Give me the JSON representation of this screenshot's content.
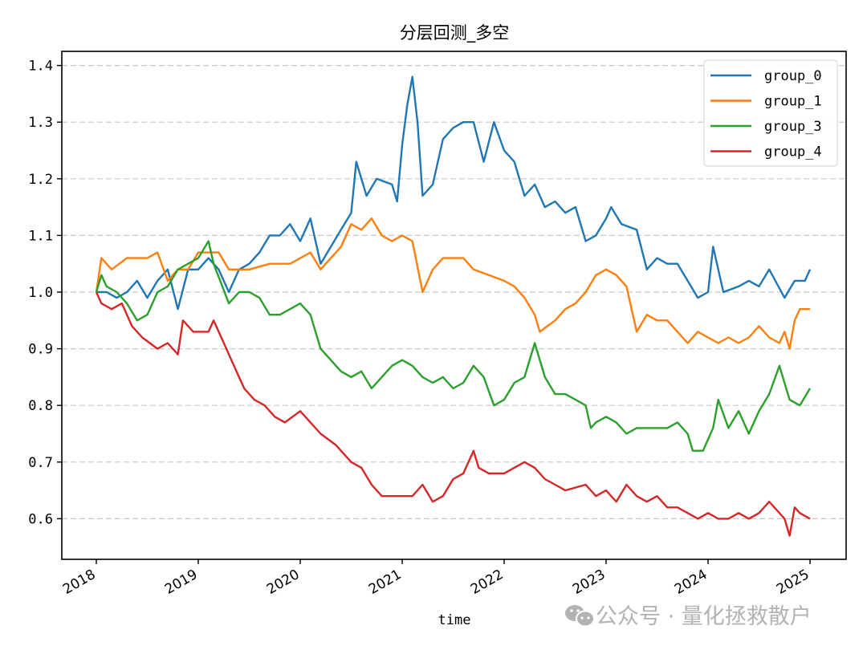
{
  "chart_data": {
    "type": "line",
    "title": "分层回测_多空",
    "xlabel": "time",
    "ylabel": "",
    "xlim": [
      2017.65,
      2025.35
    ],
    "ylim": [
      0.524,
      1.424
    ],
    "x_ticks": [
      2018,
      2019,
      2020,
      2021,
      2022,
      2023,
      2024,
      2025
    ],
    "x_tick_labels": [
      "2018",
      "2019",
      "2020",
      "2021",
      "2022",
      "2023",
      "2024",
      "2025"
    ],
    "y_ticks": [
      0.6,
      0.7,
      0.8,
      0.9,
      1.0,
      1.1,
      1.2,
      1.3,
      1.4
    ],
    "y_tick_labels": [
      "0.6",
      "0.7",
      "0.8",
      "0.9",
      "1.0",
      "1.1",
      "1.2",
      "1.3",
      "1.4"
    ],
    "grid": {
      "y": true,
      "x": false,
      "style": "dashed",
      "color": "#c8c8c8"
    },
    "legend_position": "upper right",
    "series": [
      {
        "name": "group_0",
        "color": "#1f77b4",
        "x": [
          2018.0,
          2018.1,
          2018.2,
          2018.3,
          2018.4,
          2018.5,
          2018.6,
          2018.7,
          2018.8,
          2018.9,
          2019.0,
          2019.1,
          2019.2,
          2019.3,
          2019.4,
          2019.5,
          2019.6,
          2019.7,
          2019.8,
          2019.9,
          2020.0,
          2020.1,
          2020.2,
          2020.3,
          2020.4,
          2020.5,
          2020.55,
          2020.65,
          2020.75,
          2020.9,
          2020.95,
          2021.0,
          2021.05,
          2021.1,
          2021.15,
          2021.2,
          2021.3,
          2021.4,
          2021.5,
          2021.6,
          2021.7,
          2021.8,
          2021.9,
          2022.0,
          2022.1,
          2022.2,
          2022.3,
          2022.4,
          2022.5,
          2022.6,
          2022.7,
          2022.8,
          2022.9,
          2023.0,
          2023.05,
          2023.15,
          2023.3,
          2023.4,
          2023.5,
          2023.6,
          2023.7,
          2023.8,
          2023.9,
          2024.0,
          2024.05,
          2024.15,
          2024.3,
          2024.4,
          2024.5,
          2024.6,
          2024.75,
          2024.85,
          2024.95,
          2025.0
        ],
        "values": [
          1.0,
          1.0,
          0.99,
          1.0,
          1.02,
          0.99,
          1.02,
          1.04,
          0.97,
          1.04,
          1.04,
          1.06,
          1.04,
          1.0,
          1.04,
          1.05,
          1.07,
          1.1,
          1.1,
          1.12,
          1.09,
          1.13,
          1.05,
          1.08,
          1.11,
          1.14,
          1.23,
          1.17,
          1.2,
          1.19,
          1.16,
          1.26,
          1.33,
          1.38,
          1.3,
          1.17,
          1.19,
          1.27,
          1.29,
          1.3,
          1.3,
          1.23,
          1.3,
          1.25,
          1.23,
          1.17,
          1.19,
          1.15,
          1.16,
          1.14,
          1.15,
          1.09,
          1.1,
          1.13,
          1.15,
          1.12,
          1.11,
          1.04,
          1.06,
          1.05,
          1.05,
          1.02,
          0.99,
          1.0,
          1.08,
          1.0,
          1.01,
          1.02,
          1.01,
          1.04,
          0.99,
          1.02,
          1.02,
          1.04
        ]
      },
      {
        "name": "group_1",
        "color": "#ff7f0e",
        "x": [
          2018.0,
          2018.05,
          2018.15,
          2018.3,
          2018.5,
          2018.6,
          2018.7,
          2018.8,
          2018.9,
          2019.0,
          2019.1,
          2019.2,
          2019.3,
          2019.5,
          2019.7,
          2019.9,
          2020.1,
          2020.2,
          2020.3,
          2020.4,
          2020.5,
          2020.6,
          2020.7,
          2020.8,
          2020.9,
          2021.0,
          2021.1,
          2021.2,
          2021.3,
          2021.4,
          2021.6,
          2021.7,
          2021.85,
          2022.0,
          2022.1,
          2022.2,
          2022.3,
          2022.35,
          2022.5,
          2022.6,
          2022.7,
          2022.8,
          2022.9,
          2023.0,
          2023.1,
          2023.2,
          2023.3,
          2023.4,
          2023.5,
          2023.6,
          2023.7,
          2023.8,
          2023.9,
          2024.0,
          2024.1,
          2024.2,
          2024.3,
          2024.4,
          2024.5,
          2024.6,
          2024.7,
          2024.75,
          2024.8,
          2024.85,
          2024.9,
          2025.0
        ],
        "values": [
          1.0,
          1.06,
          1.04,
          1.06,
          1.06,
          1.07,
          1.02,
          1.04,
          1.04,
          1.07,
          1.07,
          1.07,
          1.04,
          1.04,
          1.05,
          1.05,
          1.07,
          1.04,
          1.06,
          1.08,
          1.12,
          1.11,
          1.13,
          1.1,
          1.09,
          1.1,
          1.09,
          1.0,
          1.04,
          1.06,
          1.06,
          1.04,
          1.03,
          1.02,
          1.01,
          0.99,
          0.96,
          0.93,
          0.95,
          0.97,
          0.98,
          1.0,
          1.03,
          1.04,
          1.03,
          1.01,
          0.93,
          0.96,
          0.95,
          0.95,
          0.93,
          0.91,
          0.93,
          0.92,
          0.91,
          0.92,
          0.91,
          0.92,
          0.94,
          0.92,
          0.91,
          0.93,
          0.9,
          0.95,
          0.97,
          0.97
        ]
      },
      {
        "name": "group_3",
        "color": "#2ca02c",
        "x": [
          2018.0,
          2018.05,
          2018.1,
          2018.2,
          2018.3,
          2018.4,
          2018.5,
          2018.6,
          2018.7,
          2018.8,
          2018.9,
          2019.0,
          2019.1,
          2019.15,
          2019.3,
          2019.4,
          2019.5,
          2019.6,
          2019.7,
          2019.8,
          2019.9,
          2020.0,
          2020.1,
          2020.2,
          2020.3,
          2020.4,
          2020.5,
          2020.6,
          2020.7,
          2020.8,
          2020.9,
          2021.0,
          2021.1,
          2021.2,
          2021.3,
          2021.4,
          2021.5,
          2021.6,
          2021.7,
          2021.8,
          2021.9,
          2022.0,
          2022.1,
          2022.2,
          2022.3,
          2022.4,
          2022.5,
          2022.6,
          2022.7,
          2022.8,
          2022.85,
          2022.9,
          2023.0,
          2023.1,
          2023.2,
          2023.3,
          2023.5,
          2023.6,
          2023.7,
          2023.8,
          2023.85,
          2023.95,
          2024.05,
          2024.1,
          2024.2,
          2024.3,
          2024.4,
          2024.5,
          2024.6,
          2024.7,
          2024.8,
          2024.9,
          2025.0
        ],
        "values": [
          1.0,
          1.03,
          1.01,
          1.0,
          0.98,
          0.95,
          0.96,
          1.0,
          1.01,
          1.04,
          1.05,
          1.06,
          1.09,
          1.05,
          0.98,
          1.0,
          1.0,
          0.99,
          0.96,
          0.96,
          0.97,
          0.98,
          0.96,
          0.9,
          0.88,
          0.86,
          0.85,
          0.86,
          0.83,
          0.85,
          0.87,
          0.88,
          0.87,
          0.85,
          0.84,
          0.85,
          0.83,
          0.84,
          0.87,
          0.85,
          0.8,
          0.81,
          0.84,
          0.85,
          0.91,
          0.85,
          0.82,
          0.82,
          0.81,
          0.8,
          0.76,
          0.77,
          0.78,
          0.77,
          0.75,
          0.76,
          0.76,
          0.76,
          0.77,
          0.75,
          0.72,
          0.72,
          0.76,
          0.81,
          0.76,
          0.79,
          0.75,
          0.79,
          0.82,
          0.87,
          0.81,
          0.8,
          0.83
        ]
      },
      {
        "name": "group_4",
        "color": "#d62728",
        "x": [
          2018.0,
          2018.05,
          2018.15,
          2018.25,
          2018.35,
          2018.45,
          2018.6,
          2018.7,
          2018.8,
          2018.85,
          2018.95,
          2019.1,
          2019.15,
          2019.25,
          2019.35,
          2019.45,
          2019.55,
          2019.65,
          2019.75,
          2019.85,
          2020.0,
          2020.1,
          2020.2,
          2020.35,
          2020.5,
          2020.6,
          2020.7,
          2020.8,
          2021.0,
          2021.1,
          2021.2,
          2021.3,
          2021.4,
          2021.5,
          2021.6,
          2021.7,
          2021.75,
          2021.85,
          2022.0,
          2022.2,
          2022.3,
          2022.4,
          2022.5,
          2022.6,
          2022.8,
          2022.9,
          2023.0,
          2023.1,
          2023.2,
          2023.3,
          2023.4,
          2023.5,
          2023.6,
          2023.7,
          2023.8,
          2023.9,
          2024.0,
          2024.1,
          2024.2,
          2024.3,
          2024.4,
          2024.5,
          2024.6,
          2024.7,
          2024.75,
          2024.8,
          2024.85,
          2024.9,
          2025.0
        ],
        "values": [
          1.0,
          0.98,
          0.97,
          0.98,
          0.94,
          0.92,
          0.9,
          0.91,
          0.89,
          0.95,
          0.93,
          0.93,
          0.95,
          0.91,
          0.87,
          0.83,
          0.81,
          0.8,
          0.78,
          0.77,
          0.79,
          0.77,
          0.75,
          0.73,
          0.7,
          0.69,
          0.66,
          0.64,
          0.64,
          0.64,
          0.66,
          0.63,
          0.64,
          0.67,
          0.68,
          0.72,
          0.69,
          0.68,
          0.68,
          0.7,
          0.69,
          0.67,
          0.66,
          0.65,
          0.66,
          0.64,
          0.65,
          0.63,
          0.66,
          0.64,
          0.63,
          0.64,
          0.62,
          0.62,
          0.61,
          0.6,
          0.61,
          0.6,
          0.6,
          0.61,
          0.6,
          0.61,
          0.63,
          0.61,
          0.6,
          0.57,
          0.62,
          0.61,
          0.6
        ]
      }
    ]
  },
  "watermark": {
    "icon": "wechat-icon",
    "text": "公众号 · 量化拯救散户"
  }
}
